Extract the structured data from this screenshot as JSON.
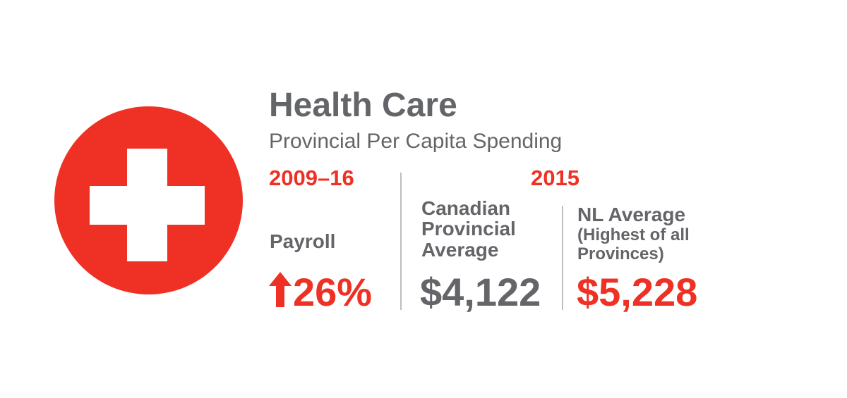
{
  "title": "Health Care",
  "subtitle": "Provincial Per Capita Spending",
  "periods": {
    "left": "2009–16",
    "right": "2015"
  },
  "payroll": {
    "label": "Payroll",
    "value": "26%",
    "direction_icon": "arrow-up-icon"
  },
  "canadian_average": {
    "label": "Canadian Provincial Average",
    "value": "$4,122"
  },
  "nl_average": {
    "label": "NL Average",
    "note": "(Highest of all Provinces)",
    "value": "$5,228"
  },
  "colors": {
    "accent_red": "#ee3124",
    "text_gray": "#646569",
    "divider_gray": "#bcbec0"
  },
  "icon": "medical-cross-icon"
}
